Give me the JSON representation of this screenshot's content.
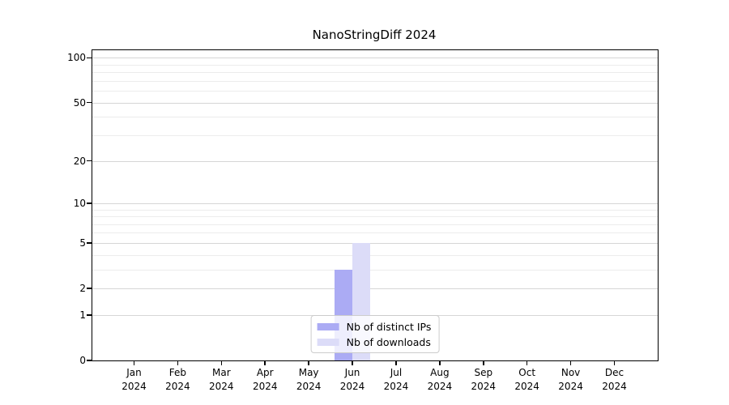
{
  "chart_data": {
    "type": "bar",
    "title": "NanoStringDiff 2024",
    "categories": [
      "Jan 2024",
      "Feb 2024",
      "Mar 2024",
      "Apr 2024",
      "May 2024",
      "Jun 2024",
      "Jul 2024",
      "Aug 2024",
      "Sep 2024",
      "Oct 2024",
      "Nov 2024",
      "Dec 2024"
    ],
    "series": [
      {
        "name": "Nb of distinct IPs",
        "color": "#ababf4",
        "values": [
          0,
          0,
          0,
          0,
          0,
          3,
          0,
          0,
          0,
          0,
          0,
          0
        ]
      },
      {
        "name": "Nb of downloads",
        "color": "#dcdcf8",
        "values": [
          0,
          0,
          0,
          0,
          0,
          5,
          0,
          0,
          0,
          0,
          0,
          0
        ]
      }
    ],
    "xlabel": "",
    "ylabel": "",
    "y_scale": "log10(1+y)",
    "y_major_ticks": [
      0,
      1,
      2,
      5,
      10,
      20,
      50,
      100
    ],
    "y_minor_gridlines": [
      3,
      4,
      6,
      7,
      8,
      9,
      30,
      40,
      60,
      70,
      80,
      90
    ],
    "ylim": [
      0,
      112
    ],
    "grid": true,
    "legend_position": "lower center"
  },
  "colors": {
    "bar_distinct_ips": "#ababf4",
    "bar_downloads": "#dcdcf8",
    "grid_major": "#d6d6d6",
    "grid_minor": "#ececec",
    "axis": "#000000",
    "legend_border": "#cccccc",
    "background": "#ffffff",
    "text": "#000000"
  }
}
